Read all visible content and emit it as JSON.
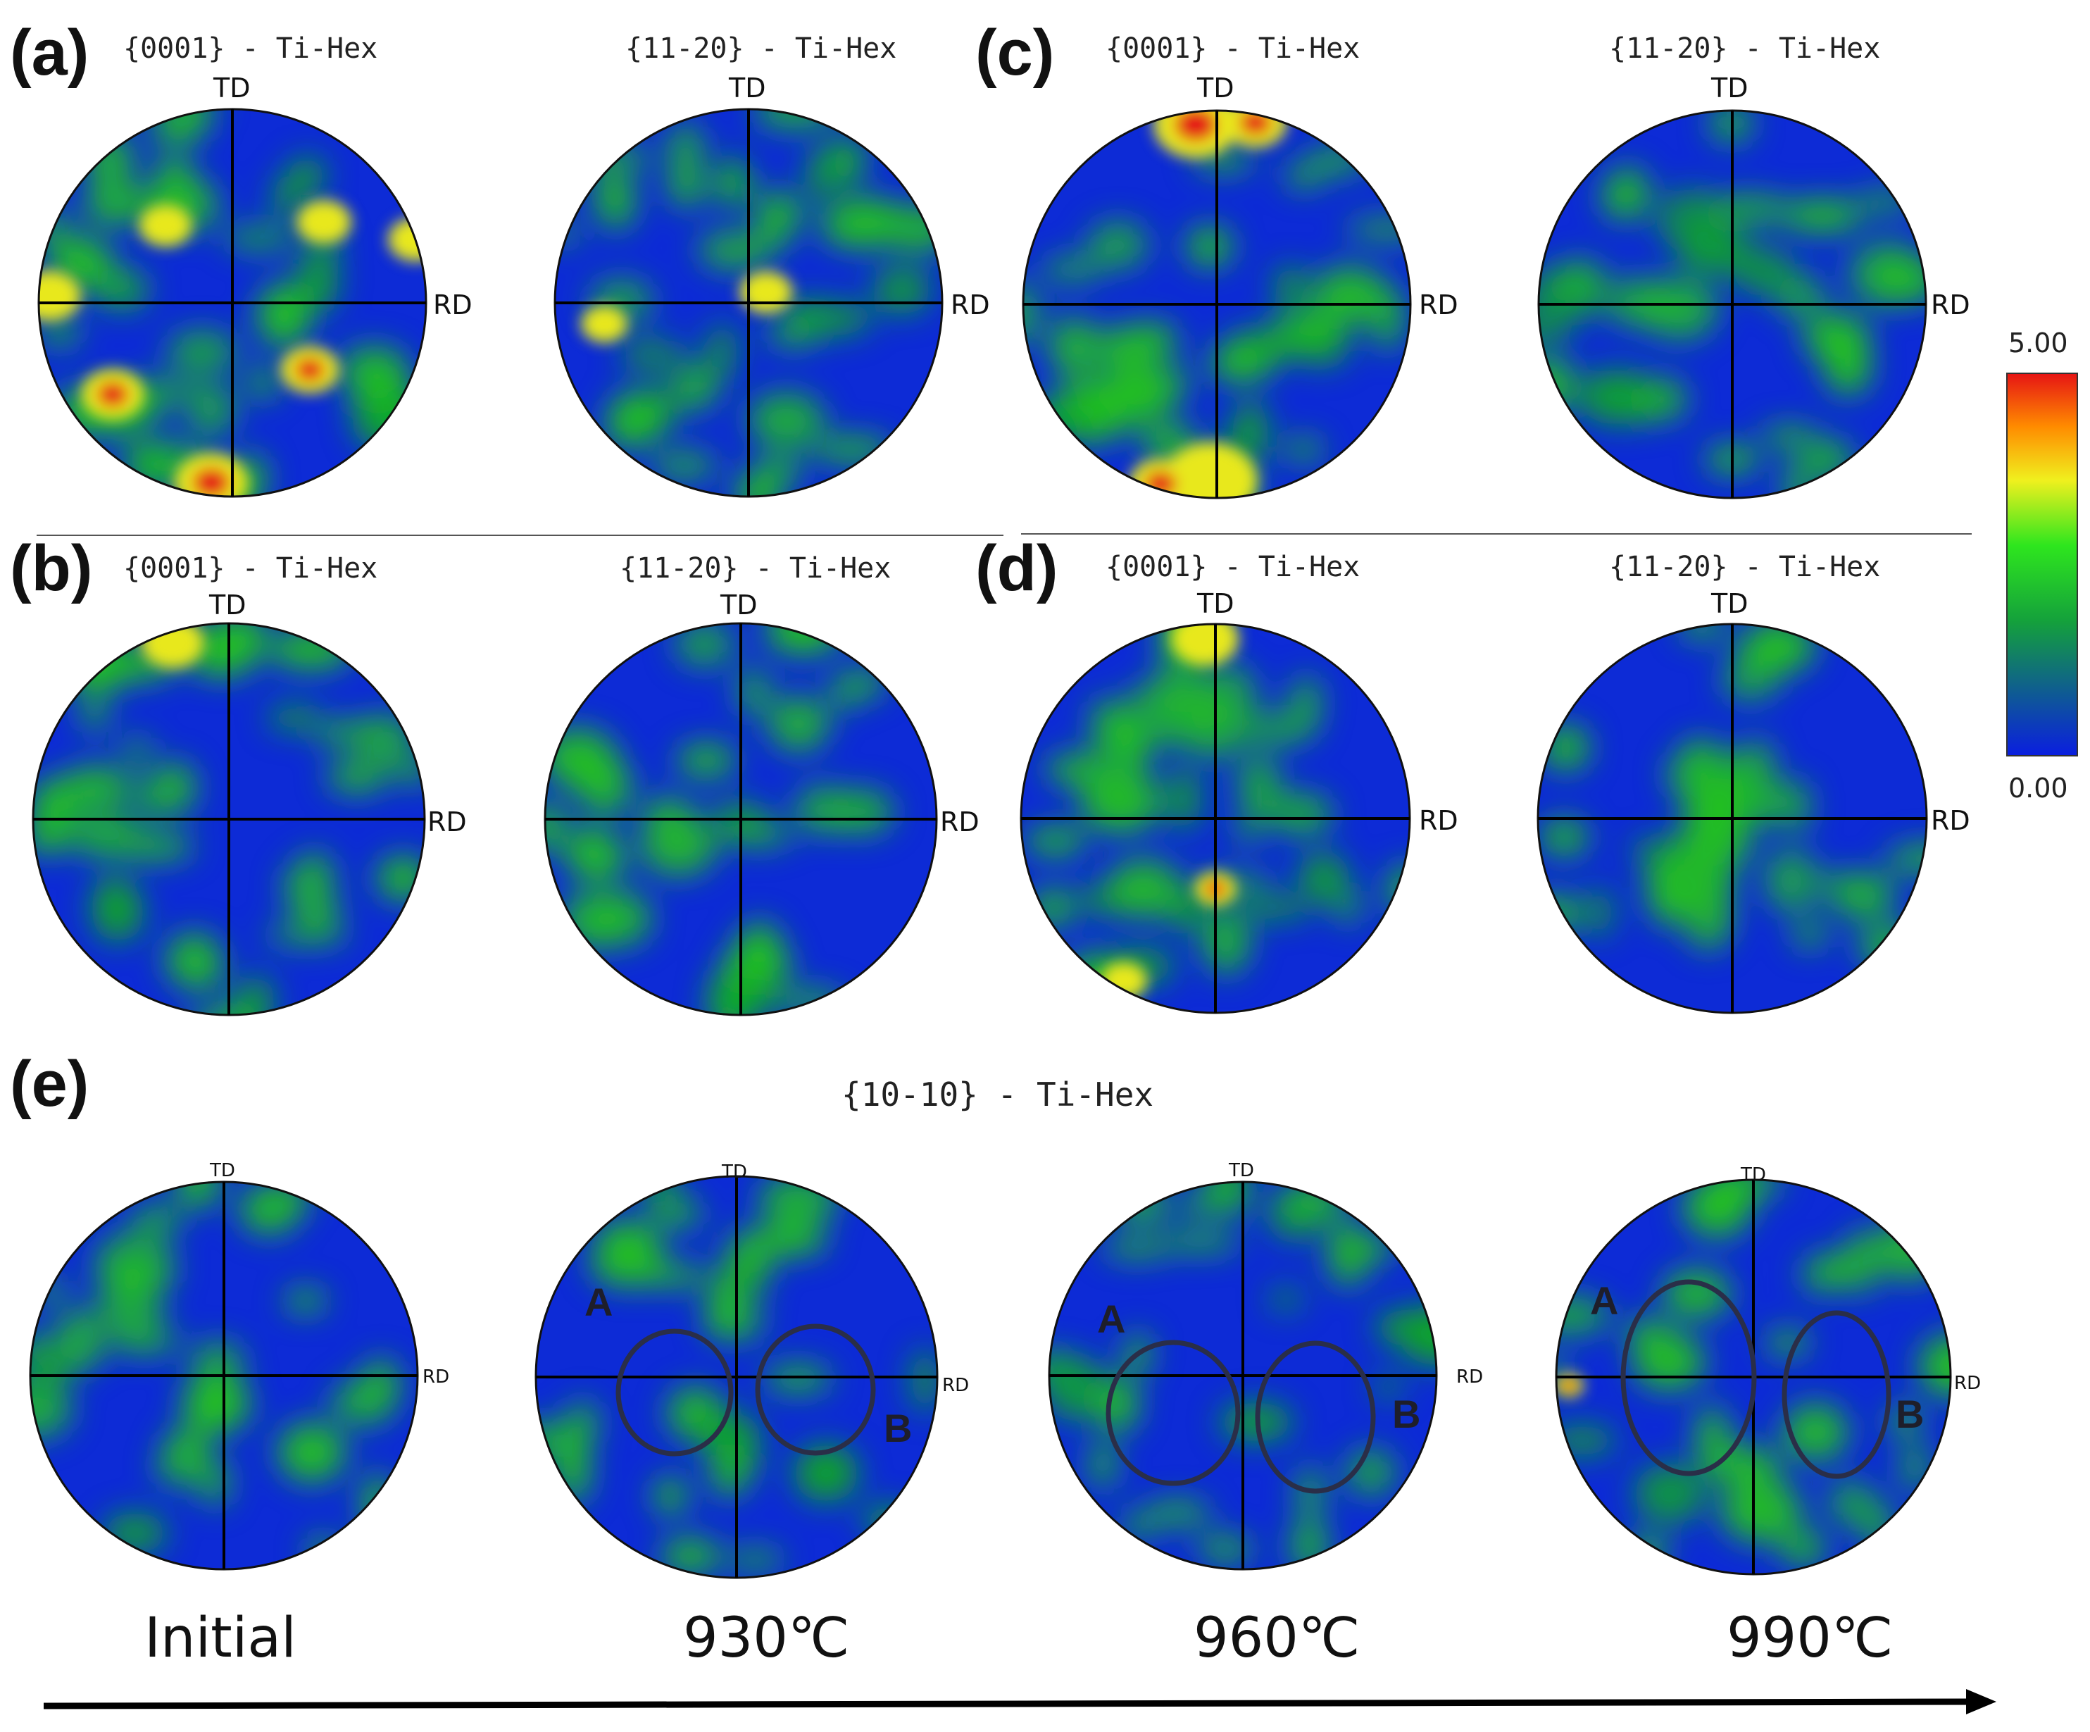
{
  "figure": {
    "panels": {
      "a": {
        "label": "(a)",
        "left_title": "{0001} - Ti-Hex",
        "right_title": "{11-20} - Ti-Hex"
      },
      "b": {
        "label": "(b)",
        "left_title": "{0001} - Ti-Hex",
        "right_title": "{11-20} - Ti-Hex"
      },
      "c": {
        "label": "(c)",
        "left_title": "{0001} - Ti-Hex",
        "right_title": "{11-20} - Ti-Hex"
      },
      "d": {
        "label": "(d)",
        "left_title": "{0001} - Ti-Hex",
        "right_title": "{11-20} - Ti-Hex"
      },
      "e": {
        "label": "(e)",
        "title": "{10-10} - Ti-Hex"
      }
    },
    "axes": {
      "td": "TD",
      "rd": "RD"
    },
    "colorbar": {
      "max": "5.00",
      "min": "0.00",
      "colors": [
        "#0a1ee0",
        "#14a03c",
        "#2ee61e",
        "#f0f01e",
        "#ff8c00",
        "#e61414"
      ]
    },
    "temperatures": [
      "Initial",
      "930℃",
      "960℃",
      "990℃"
    ],
    "regions": {
      "a": "A",
      "b": "B"
    },
    "palette": {
      "base": "#0d2bd6",
      "green": "#22c21e",
      "yellow": "#e8e81c",
      "red": "#e51414"
    }
  }
}
